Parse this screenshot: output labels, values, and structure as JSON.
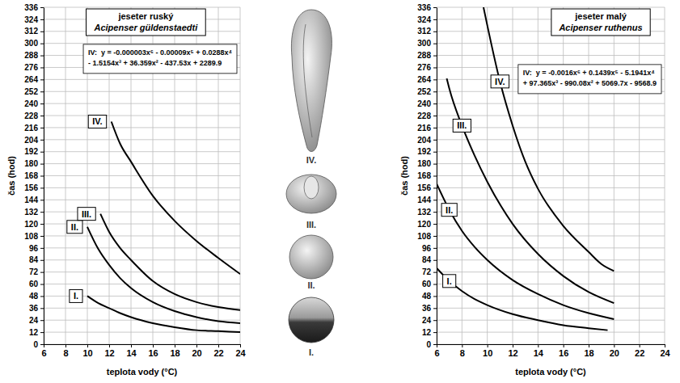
{
  "chart_data": [
    {
      "type": "line",
      "title": "jeseter ruský",
      "subtitle": "Acipenser güldenstaedti",
      "annotations": [
        "IV:  y = -0.000003x⁶ - 0.00009x⁵ + 0.0288x⁴",
        "- 1.5154x³ + 36.359x² - 437.53x + 2289.9"
      ],
      "xlabel": "teplota vody (°C)",
      "ylabel": "čas (hod)",
      "xlim": [
        6,
        24
      ],
      "ylim": [
        0,
        336
      ],
      "xticks": [
        6,
        8,
        10,
        12,
        14,
        16,
        18,
        20,
        22,
        24
      ],
      "yticks": [
        0,
        12,
        24,
        36,
        48,
        60,
        72,
        84,
        96,
        108,
        120,
        132,
        144,
        156,
        168,
        180,
        192,
        204,
        216,
        228,
        240,
        252,
        264,
        276,
        288,
        300,
        312,
        324,
        336
      ],
      "grid": true,
      "series": [
        {
          "name": "I.",
          "color": "#000000",
          "x": [
            10,
            11,
            12,
            13,
            14,
            16,
            18,
            20,
            22,
            24
          ],
          "values": [
            48,
            41,
            36,
            31,
            27,
            21,
            17,
            14,
            13,
            12
          ]
        },
        {
          "name": "II.",
          "color": "#000000",
          "x": [
            10,
            11,
            12,
            13,
            14,
            16,
            18,
            20,
            22,
            24
          ],
          "values": [
            117,
            95,
            79,
            66,
            56,
            42,
            33,
            27,
            23,
            21
          ]
        },
        {
          "name": "III.",
          "color": "#000000",
          "x": [
            11.2,
            12,
            13,
            14,
            16,
            18,
            20,
            22,
            24
          ],
          "values": [
            130,
            112,
            96,
            84,
            63,
            50,
            42,
            37,
            34
          ]
        },
        {
          "name": "IV.",
          "color": "#000000",
          "x": [
            12.2,
            13,
            14,
            16,
            18,
            20,
            22,
            24
          ],
          "values": [
            222,
            200,
            182,
            148,
            123,
            103,
            86,
            70
          ]
        }
      ]
    },
    {
      "type": "line",
      "title": "jeseter malý",
      "subtitle": "Acipenser ruthenus",
      "annotations": [
        "IV:  y = -0.0016x⁶ + 0.1439x⁵ - 5.1941x⁴",
        "+ 97.365x³ - 990.08x² + 5069.7x - 9568.9"
      ],
      "xlabel": "teplota vody (°C)",
      "ylabel": "čas (hod)",
      "xlim": [
        6,
        24
      ],
      "ylim": [
        0,
        336
      ],
      "xticks": [
        6,
        8,
        10,
        12,
        14,
        16,
        18,
        20,
        22,
        24
      ],
      "yticks": [
        0,
        12,
        24,
        36,
        48,
        60,
        72,
        84,
        96,
        108,
        120,
        132,
        144,
        156,
        168,
        180,
        192,
        204,
        216,
        228,
        240,
        252,
        264,
        276,
        288,
        300,
        312,
        324,
        336
      ],
      "grid": true,
      "series": [
        {
          "name": "I.",
          "color": "#000000",
          "x": [
            6,
            7,
            8,
            9,
            10,
            12,
            14,
            16,
            18,
            19.5
          ],
          "values": [
            76,
            63,
            53,
            45,
            39,
            30,
            24,
            19,
            16,
            14
          ]
        },
        {
          "name": "II.",
          "color": "#000000",
          "x": [
            6,
            7,
            8,
            9,
            10,
            12,
            14,
            16,
            18,
            20
          ],
          "values": [
            160,
            134,
            113,
            97,
            84,
            64,
            50,
            39,
            31,
            25
          ]
        },
        {
          "name": "III.",
          "color": "#000000",
          "x": [
            6.8,
            7,
            8,
            9,
            10,
            12,
            14,
            16,
            18,
            20
          ],
          "values": [
            265,
            255,
            218,
            188,
            162,
            120,
            90,
            68,
            52,
            41
          ]
        },
        {
          "name": "IV.",
          "color": "#000000",
          "x": [
            9.7,
            10,
            11,
            12,
            13,
            14,
            16,
            18,
            19,
            20
          ],
          "values": [
            336,
            318,
            262,
            218,
            182,
            155,
            118,
            92,
            80,
            73
          ]
        }
      ]
    }
  ]
}
